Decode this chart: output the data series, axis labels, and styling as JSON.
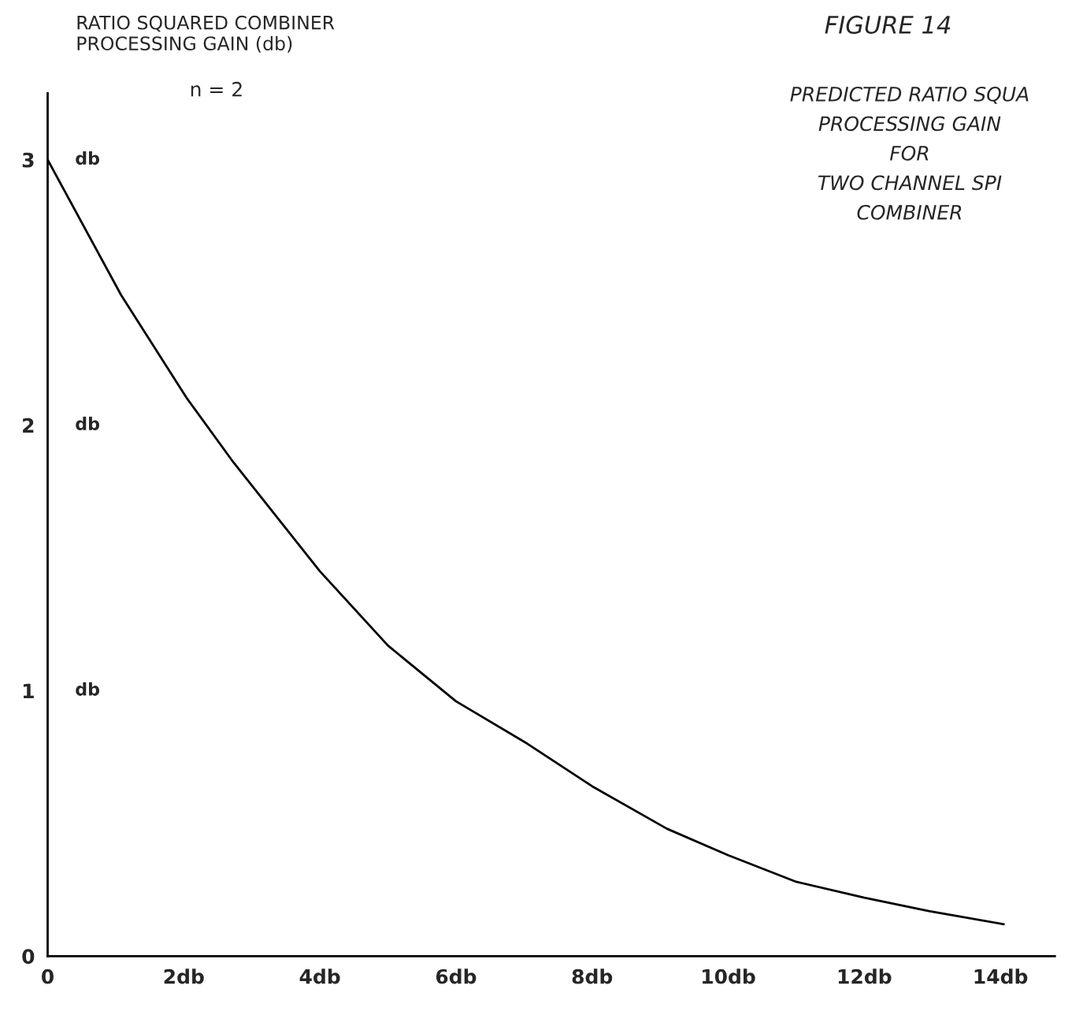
{
  "chart_data": {
    "type": "line",
    "title": "FIGURE 14",
    "subtitle": "PREDICTED RATIO SQUA\nPROCESSING GAIN\nFOR\nTWO CHANNEL SPI\nCOMBINER",
    "ylabel": "RATIO SQUARED COMBINER\nPROCESSING GAIN (db)",
    "annotations": [
      "n = 2",
      "db",
      "db",
      "db"
    ],
    "x": [
      0,
      1.08,
      2.05,
      2.73,
      4.0,
      5.0,
      6.0,
      7.05,
      8.0,
      9.1,
      10.0,
      11.0,
      12.0,
      12.95,
      14.05
    ],
    "series": [
      {
        "color": "#000000",
        "values": [
          3.0,
          2.49,
          2.1,
          1.86,
          1.45,
          1.17,
          0.96,
          0.8,
          0.64,
          0.48,
          0.38,
          0.28,
          0.22,
          0.17,
          0.12
        ]
      }
    ],
    "xlim": [
      0,
      14.8
    ],
    "ylim": [
      0,
      3.25
    ],
    "xticks": [
      0,
      {
        "value": 2,
        "label": "2db"
      },
      {
        "value": 4,
        "label": "4db"
      },
      {
        "value": 6,
        "label": "6db"
      },
      {
        "value": 8,
        "label": "8db"
      },
      {
        "value": 10,
        "label": "10db"
      },
      {
        "value": 12,
        "label": "12db"
      },
      {
        "value": 14,
        "label": "14db"
      }
    ],
    "yticks": [
      0,
      1,
      2,
      3
    ],
    "grid": false,
    "legend": false,
    "marker": "none",
    "line_style": "solid"
  }
}
